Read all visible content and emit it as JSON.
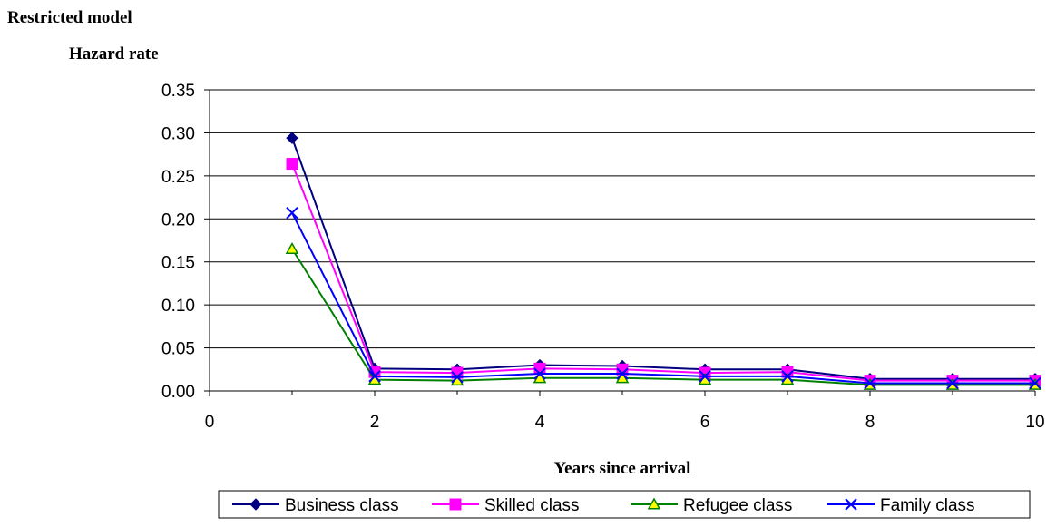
{
  "chart_data": {
    "type": "line",
    "title": "Restricted model",
    "ylabel": "Hazard rate",
    "xlabel": "Years since arrival",
    "xlim": [
      0,
      10
    ],
    "ylim": [
      0,
      0.35
    ],
    "x_ticks": [
      "0",
      "2",
      "4",
      "6",
      "8",
      "10"
    ],
    "y_ticks": [
      "0.00",
      "0.05",
      "0.10",
      "0.15",
      "0.20",
      "0.25",
      "0.30",
      "0.35"
    ],
    "grid": "horizontal",
    "legend_position": "bottom",
    "x": [
      1,
      2,
      3,
      4,
      5,
      6,
      7,
      8,
      9,
      10
    ],
    "series": [
      {
        "name": "Business class",
        "color": "#000080",
        "marker": "diamond",
        "values": [
          0.294,
          0.026,
          0.025,
          0.03,
          0.029,
          0.025,
          0.025,
          0.014,
          0.014,
          0.014
        ]
      },
      {
        "name": "Skilled class",
        "color": "#FF00FF",
        "marker": "square",
        "values": [
          0.264,
          0.022,
          0.021,
          0.026,
          0.025,
          0.021,
          0.022,
          0.012,
          0.012,
          0.012
        ]
      },
      {
        "name": "Refugee class",
        "color": "#008000",
        "marker": "triangle",
        "marker_fill": "#FFFF00",
        "values": [
          0.165,
          0.013,
          0.012,
          0.015,
          0.015,
          0.013,
          0.013,
          0.007,
          0.007,
          0.007
        ]
      },
      {
        "name": "Family class",
        "color": "#0000FF",
        "marker": "x",
        "values": [
          0.207,
          0.017,
          0.016,
          0.02,
          0.02,
          0.017,
          0.017,
          0.009,
          0.009,
          0.009
        ]
      }
    ]
  }
}
